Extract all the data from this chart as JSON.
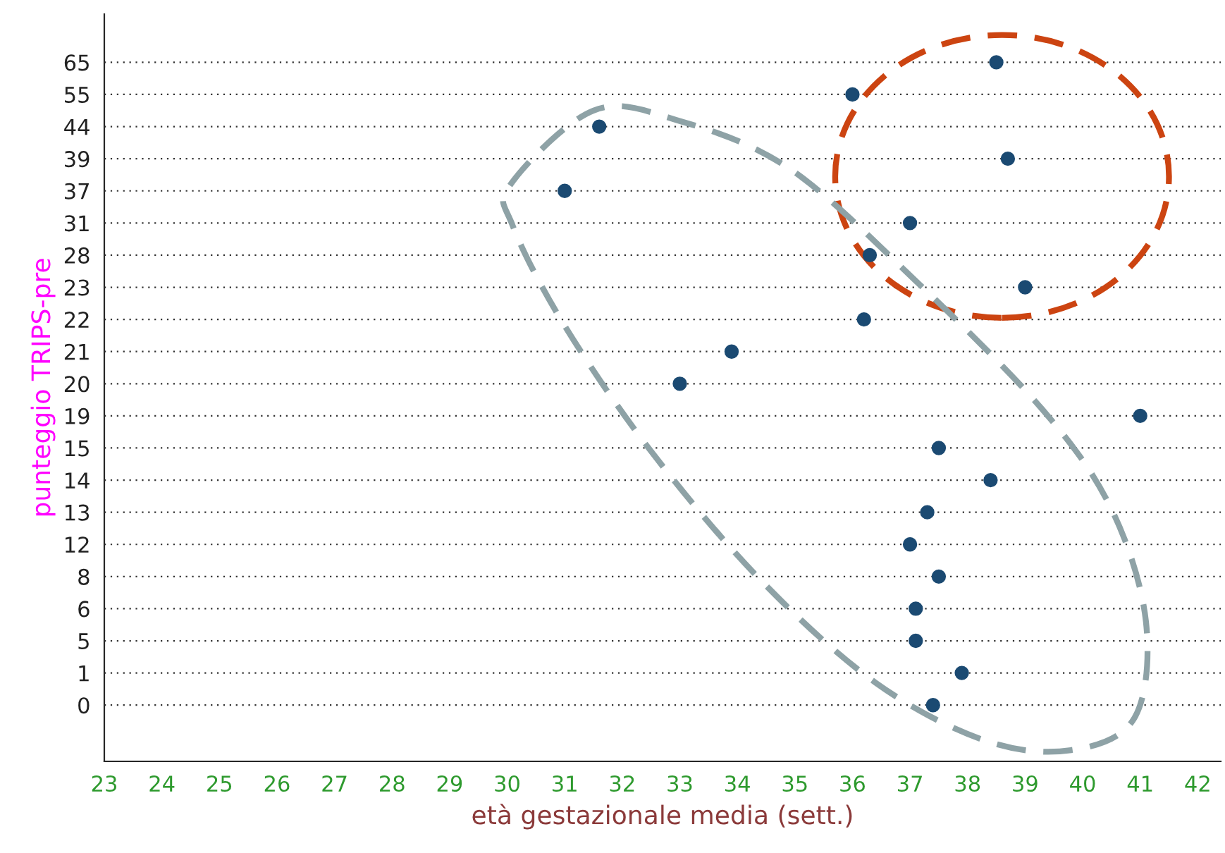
{
  "chart_data": {
    "type": "scatter",
    "orientation": "horizontal",
    "xlabel": "età gestazionale media (sett.)",
    "ylabel": "punteggio TRIPS-pre",
    "categories": [
      "65",
      "55",
      "44",
      "39",
      "37",
      "31",
      "28",
      "23",
      "22",
      "21",
      "20",
      "19",
      "15",
      "14",
      "13",
      "12",
      "8",
      "6",
      "5",
      "1",
      "0"
    ],
    "series": [
      {
        "color": "#1b4a72",
        "values": [
          38.5,
          36,
          31.6,
          38.7,
          31,
          37,
          36.3,
          39,
          36.2,
          33.9,
          33,
          41,
          37.5,
          38.4,
          37.3,
          37,
          37.5,
          37.1,
          37.1,
          37.9,
          37.4
        ]
      }
    ],
    "xlim": [
      23,
      42.4
    ],
    "xticks": [
      23,
      24,
      25,
      26,
      27,
      28,
      29,
      30,
      31,
      32,
      33,
      34,
      35,
      36,
      37,
      38,
      39,
      40,
      41,
      42
    ],
    "grid": "y",
    "marker": "circle"
  }
}
